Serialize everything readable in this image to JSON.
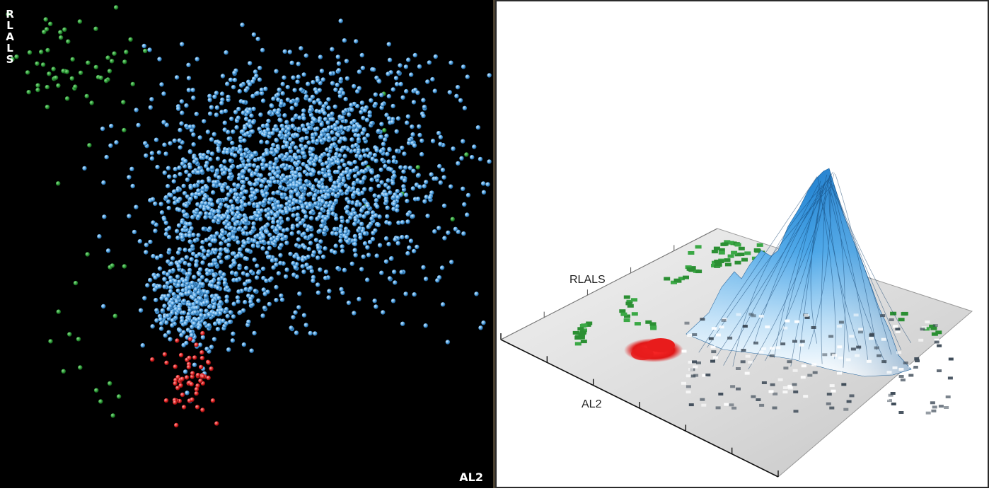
{
  "chart_data": [
    {
      "type": "scatter",
      "view": "2D projection of 3D scatter (black background)",
      "xlabel": "AL2",
      "ylabel": "RLALS",
      "grid": false,
      "background": "#000000",
      "series": [
        {
          "color": "#5aa9e6",
          "cluster_center": [
            0.58,
            0.62
          ],
          "point_count": 2400
        },
        {
          "color": "#2f9e3a",
          "cluster_center": [
            0.18,
            0.82
          ],
          "point_count": 80
        },
        {
          "color": "#e02020",
          "cluster_center": [
            0.36,
            0.18
          ],
          "point_count": 60
        }
      ]
    },
    {
      "type": "surface",
      "view": "3D density surface (white background)",
      "xlabel": "AL2",
      "ylabel": "RLALS",
      "grid": false,
      "background": "#ffffff",
      "series": [
        {
          "color": "#2f8fd8",
          "peak": "tall main peak"
        },
        {
          "color": "#2f9e3a",
          "peak": "flat patches"
        },
        {
          "color": "#e02020",
          "peak": "small low patch"
        }
      ]
    }
  ]
}
